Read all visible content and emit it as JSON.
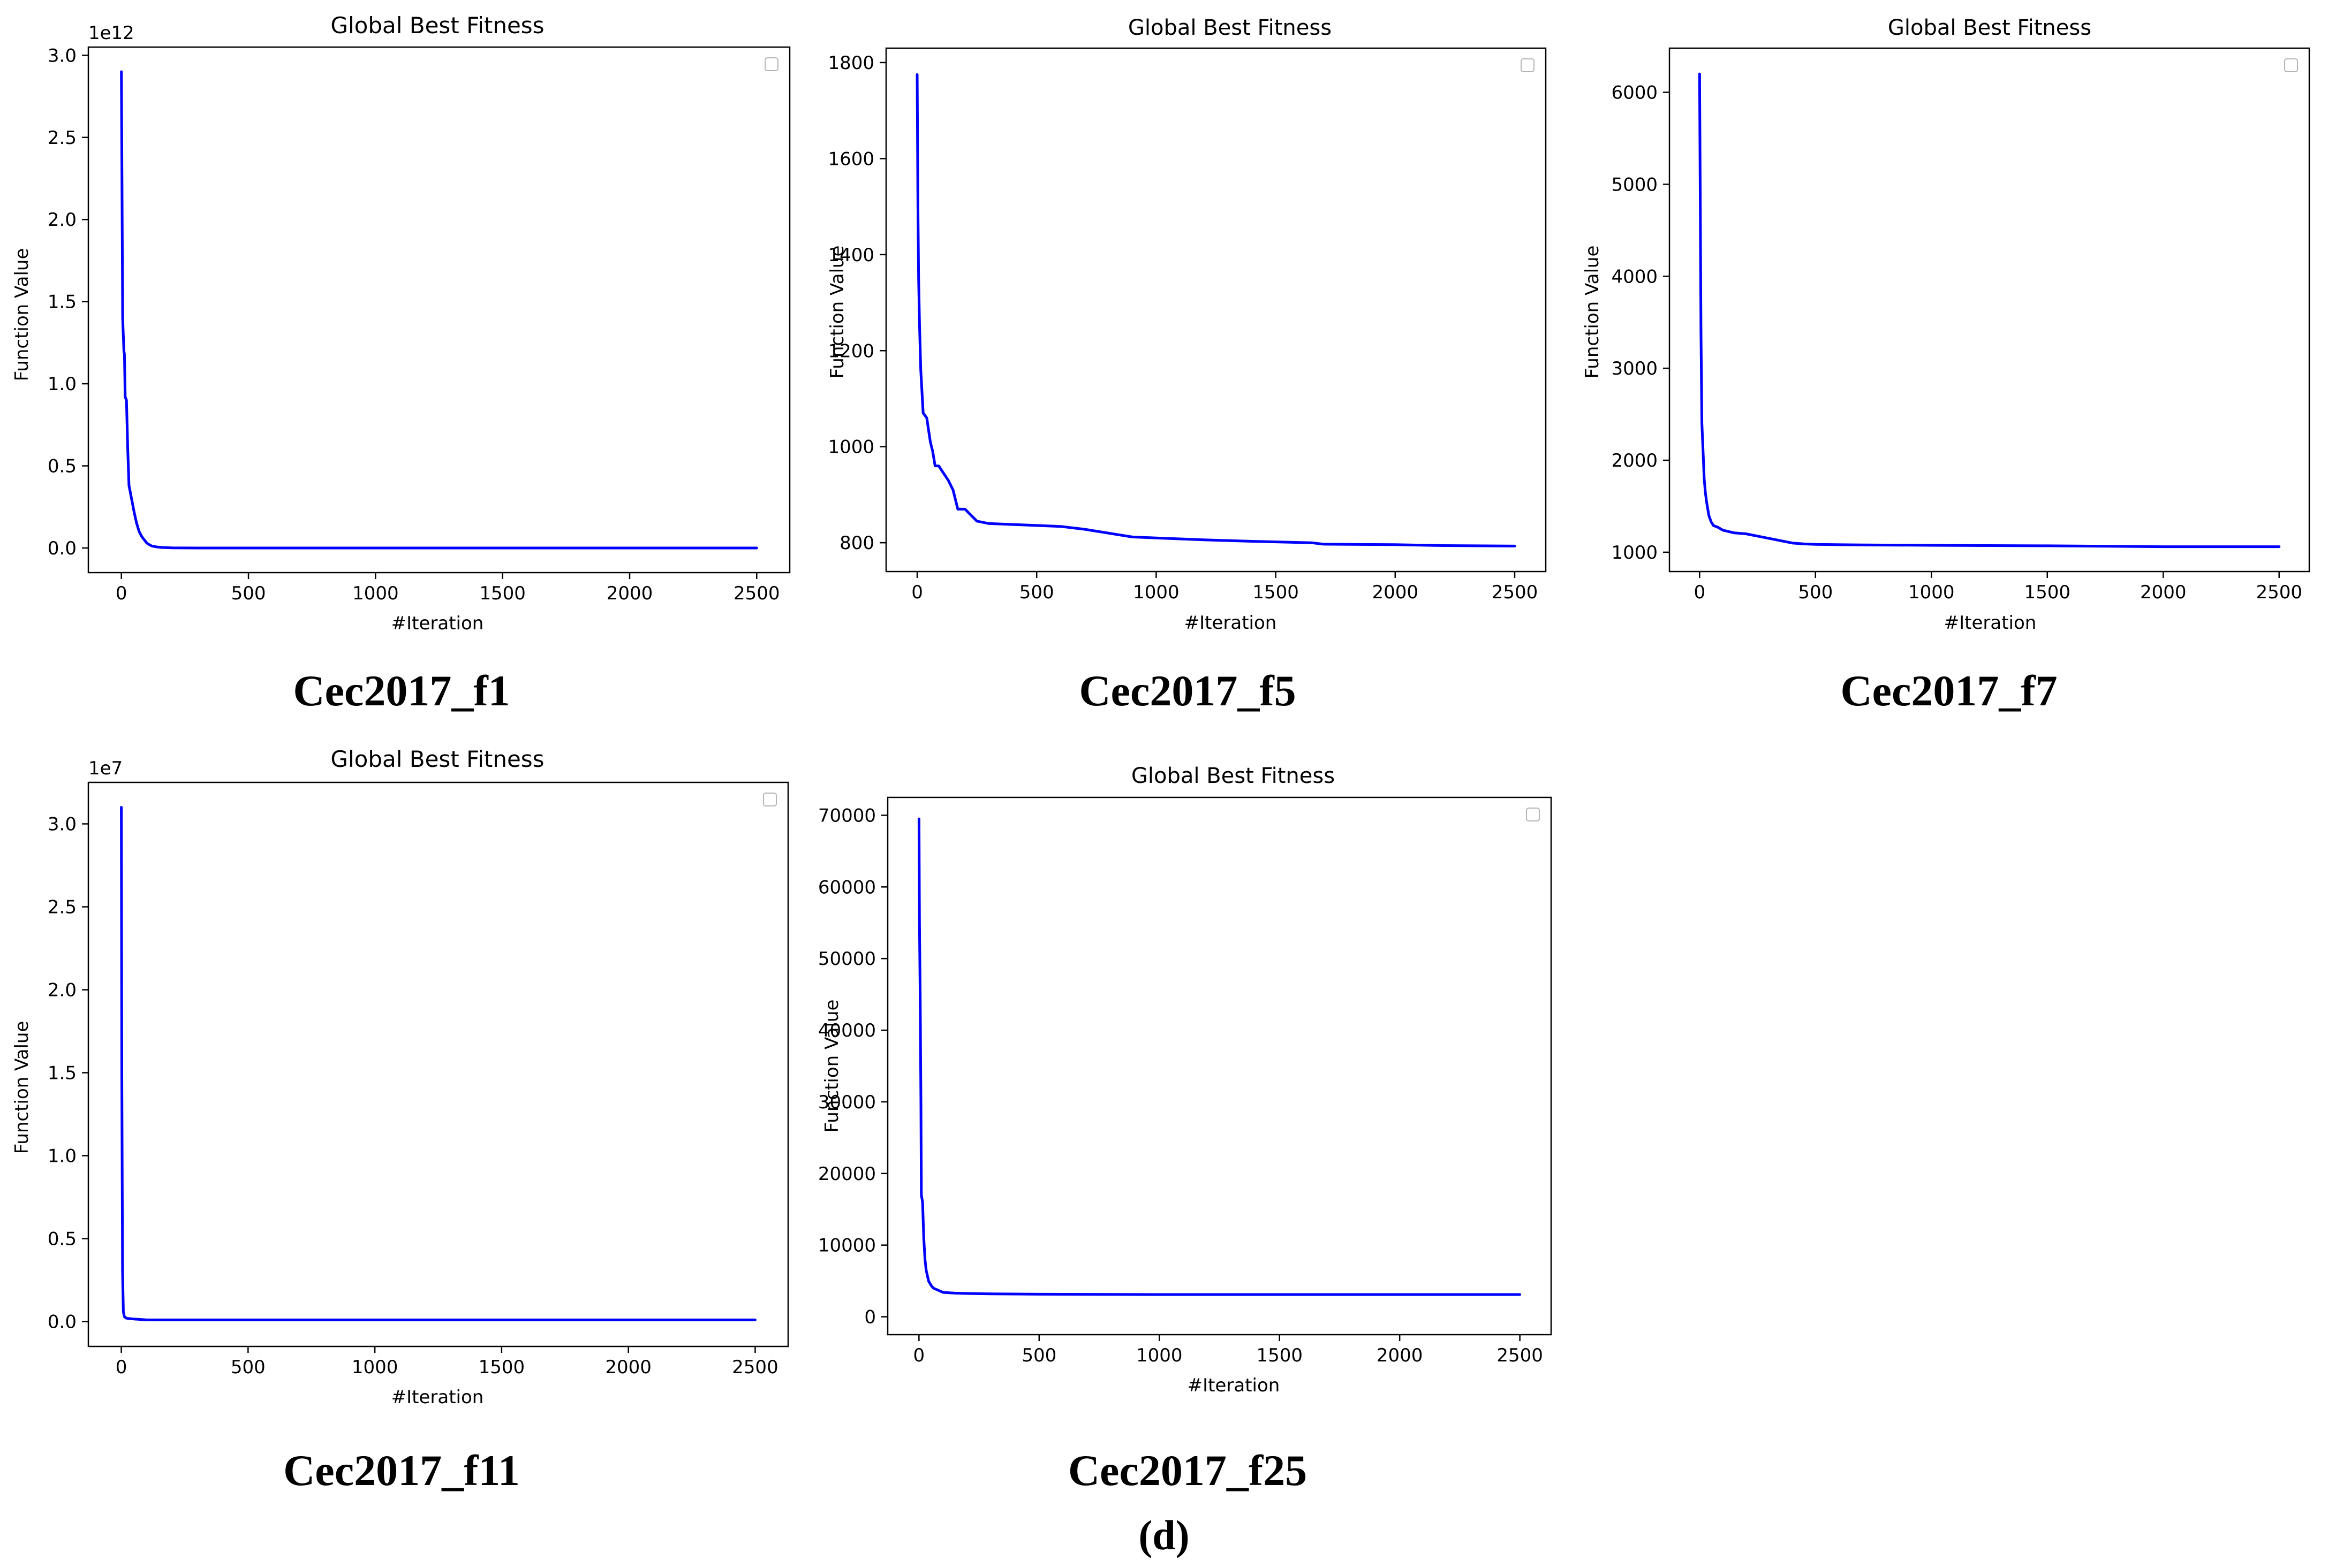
{
  "chart_data": [
    {
      "type": "line",
      "title": "Global Best Fitness",
      "xlabel": "#Iteration",
      "ylabel": "Function Value",
      "offset_text": "1e12",
      "caption": "Cec2017_f1",
      "xlim": [
        -130,
        2630
      ],
      "ylim": [
        -0.15,
        3.05
      ],
      "x_ticks": [
        0,
        500,
        1000,
        1500,
        2000,
        2500
      ],
      "x_tick_labels": [
        "0",
        "500",
        "1000",
        "1500",
        "2000",
        "2500"
      ],
      "y_ticks": [
        0,
        0.5,
        1.0,
        1.5,
        2.0,
        2.5,
        3.0
      ],
      "y_tick_labels": [
        "0.0",
        "0.5",
        "1.0",
        "1.5",
        "2.0",
        "2.5",
        "3.0"
      ],
      "series": [
        {
          "color": "#0000ff",
          "x": [
            0,
            2,
            5,
            10,
            12,
            15,
            20,
            25,
            30,
            40,
            50,
            60,
            70,
            80,
            90,
            100,
            110,
            120,
            140,
            160,
            200,
            300,
            500,
            1000,
            1500,
            2000,
            2500
          ],
          "y": [
            2.9,
            2.3,
            1.4,
            1.2,
            1.18,
            0.92,
            0.9,
            0.6,
            0.38,
            0.3,
            0.22,
            0.15,
            0.1,
            0.07,
            0.05,
            0.03,
            0.02,
            0.012,
            0.006,
            0.003,
            0.001,
            0,
            0,
            0,
            0,
            0,
            0
          ]
        }
      ]
    },
    {
      "type": "line",
      "title": "Global Best Fitness",
      "xlabel": "#Iteration",
      "ylabel": "Function Value",
      "caption": "Cec2017_f5",
      "xlim": [
        -130,
        2630
      ],
      "ylim": [
        740,
        1830
      ],
      "x_ticks": [
        0,
        500,
        1000,
        1500,
        2000,
        2500
      ],
      "x_tick_labels": [
        "0",
        "500",
        "1000",
        "1500",
        "2000",
        "2500"
      ],
      "y_ticks": [
        800,
        1000,
        1200,
        1400,
        1600,
        1800
      ],
      "y_tick_labels": [
        "800",
        "1000",
        "1200",
        "1400",
        "1600",
        "1800"
      ],
      "series": [
        {
          "color": "#0000ff",
          "x": [
            0,
            3,
            6,
            10,
            15,
            25,
            40,
            55,
            65,
            75,
            90,
            130,
            150,
            170,
            200,
            250,
            300,
            400,
            500,
            600,
            700,
            800,
            900,
            1000,
            1200,
            1400,
            1650,
            1700,
            2000,
            2200,
            2500
          ],
          "y": [
            1775,
            1500,
            1350,
            1250,
            1160,
            1070,
            1060,
            1010,
            990,
            960,
            960,
            930,
            910,
            870,
            870,
            845,
            840,
            838,
            836,
            834,
            828,
            820,
            812,
            810,
            806,
            803,
            800,
            797,
            796,
            794,
            793
          ]
        }
      ]
    },
    {
      "type": "line",
      "title": "Global Best Fitness",
      "xlabel": "#Iteration",
      "ylabel": "Function Value",
      "caption": "Cec2017_f7",
      "xlim": [
        -130,
        2630
      ],
      "ylim": [
        790,
        6480
      ],
      "x_ticks": [
        0,
        500,
        1000,
        1500,
        2000,
        2500
      ],
      "x_tick_labels": [
        "0",
        "500",
        "1000",
        "1500",
        "2000",
        "2500"
      ],
      "y_ticks": [
        1000,
        2000,
        3000,
        4000,
        5000,
        6000
      ],
      "y_tick_labels": [
        "1000",
        "2000",
        "3000",
        "4000",
        "5000",
        "6000"
      ],
      "series": [
        {
          "color": "#0000ff",
          "x": [
            0,
            3,
            6,
            10,
            15,
            20,
            25,
            30,
            40,
            50,
            60,
            80,
            100,
            150,
            200,
            300,
            400,
            450,
            500,
            700,
            1000,
            1500,
            2000,
            2500
          ],
          "y": [
            6200,
            4800,
            3400,
            2400,
            2100,
            1800,
            1650,
            1550,
            1400,
            1330,
            1290,
            1270,
            1240,
            1210,
            1200,
            1150,
            1100,
            1090,
            1085,
            1080,
            1075,
            1070,
            1060,
            1060
          ]
        }
      ]
    },
    {
      "type": "line",
      "title": "Global Best Fitness",
      "xlabel": "#Iteration",
      "ylabel": "Function Value",
      "offset_text": "1e7",
      "caption": "Cec2017_f11",
      "xlim": [
        -130,
        2630
      ],
      "ylim": [
        -0.15,
        3.25
      ],
      "x_ticks": [
        0,
        500,
        1000,
        1500,
        2000,
        2500
      ],
      "x_tick_labels": [
        "0",
        "500",
        "1000",
        "1500",
        "2000",
        "2500"
      ],
      "y_ticks": [
        0,
        0.5,
        1.0,
        1.5,
        2.0,
        2.5,
        3.0
      ],
      "y_tick_labels": [
        "0.0",
        "0.5",
        "1.0",
        "1.5",
        "2.0",
        "2.5",
        "3.0"
      ],
      "series": [
        {
          "color": "#0000ff",
          "x": [
            0,
            2,
            5,
            8,
            12,
            20,
            50,
            100,
            500,
            1000,
            1500,
            2000,
            2500
          ],
          "y": [
            3.1,
            1.5,
            0.3,
            0.06,
            0.03,
            0.02,
            0.015,
            0.01,
            0.01,
            0.01,
            0.01,
            0.01,
            0.01
          ]
        }
      ]
    },
    {
      "type": "line",
      "title": "Global Best Fitness",
      "xlabel": "#Iteration",
      "ylabel": "Function Value",
      "caption": "Cec2017_f25",
      "xlim": [
        -130,
        2630
      ],
      "ylim": [
        -2500,
        72500
      ],
      "x_ticks": [
        0,
        500,
        1000,
        1500,
        2000,
        2500
      ],
      "x_tick_labels": [
        "0",
        "500",
        "1000",
        "1500",
        "2000",
        "2500"
      ],
      "y_ticks": [
        0,
        10000,
        20000,
        30000,
        40000,
        50000,
        60000,
        70000
      ],
      "y_tick_labels": [
        "0",
        "10000",
        "20000",
        "30000",
        "40000",
        "50000",
        "60000",
        "70000"
      ],
      "series": [
        {
          "color": "#0000ff",
          "x": [
            0,
            2,
            5,
            8,
            10,
            15,
            20,
            25,
            30,
            40,
            50,
            60,
            80,
            100,
            150,
            200,
            300,
            500,
            1000,
            1500,
            2000,
            2500
          ],
          "y": [
            69500,
            55000,
            45000,
            30000,
            17000,
            16000,
            11000,
            8000,
            6500,
            5000,
            4400,
            4000,
            3700,
            3400,
            3300,
            3250,
            3200,
            3150,
            3100,
            3100,
            3100,
            3100
          ]
        }
      ]
    }
  ],
  "figure_label": "(d)"
}
